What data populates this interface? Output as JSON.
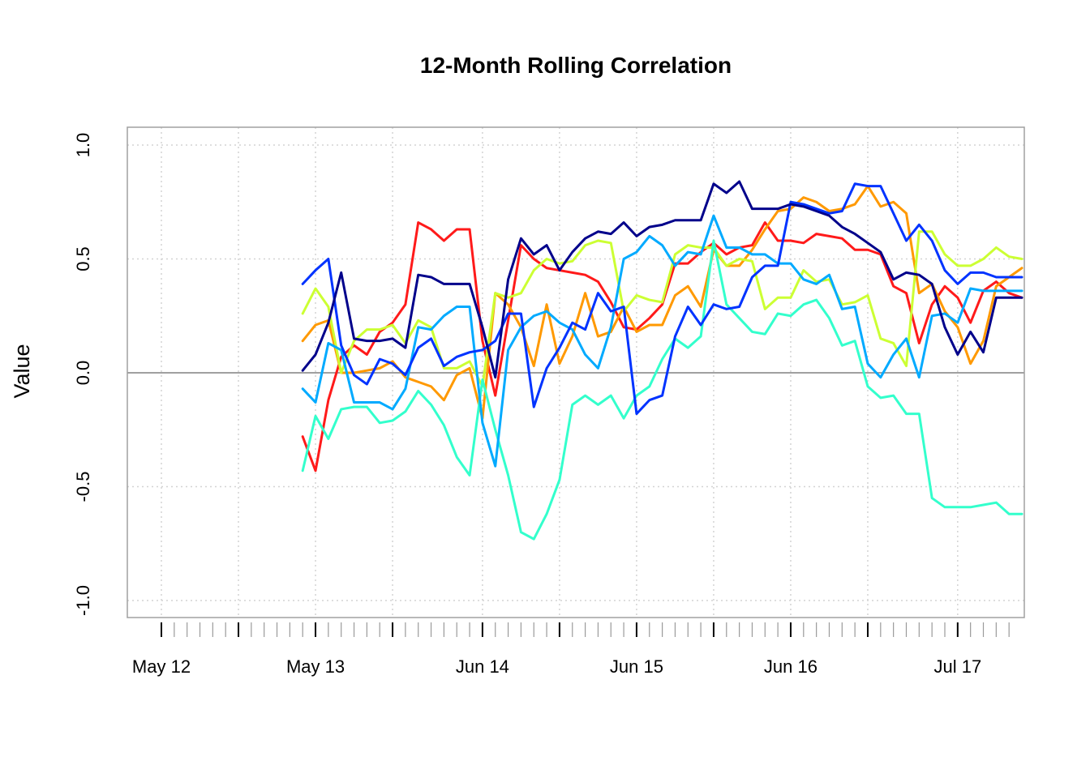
{
  "chart_data": {
    "type": "line",
    "title": "12-Month Rolling Correlation",
    "xlabel": "",
    "ylabel": "Value",
    "ylim": [
      -1.0,
      1.0
    ],
    "yticks": [
      "-1.0",
      "-0.5",
      "0.0",
      "0.5",
      "1.0"
    ],
    "ytick_values": [
      -1.0,
      -0.5,
      0.0,
      0.5,
      1.0
    ],
    "x_start": "2012-05",
    "x_end": "2017-11",
    "data_start": "2013-04",
    "xticks_major": [
      "May 12",
      "May 13",
      "Jun 14",
      "Jun 15",
      "Jun 16",
      "Jul 17"
    ],
    "xticks_major_months": [
      "2012-05",
      "2013-05",
      "2014-06",
      "2015-06",
      "2016-06",
      "2017-07"
    ],
    "grid": true,
    "zero_line": true,
    "legend": "none",
    "series": [
      {
        "color": "#FF1A1A",
        "values": [
          -0.28,
          -0.43,
          -0.12,
          0.07,
          0.12,
          0.08,
          0.18,
          0.22,
          0.3,
          0.66,
          0.63,
          0.58,
          0.63,
          0.63,
          0.14,
          -0.1,
          0.23,
          0.56,
          0.5,
          0.46,
          0.45,
          0.44,
          0.43,
          0.4,
          0.31,
          0.2,
          0.19,
          0.24,
          0.3,
          0.48,
          0.48,
          0.53,
          0.57,
          0.52,
          0.55,
          0.56,
          0.66,
          0.58,
          0.58,
          0.57,
          0.61,
          0.6,
          0.59,
          0.54,
          0.54,
          0.52,
          0.38,
          0.35,
          0.13,
          0.3,
          0.38,
          0.33,
          0.22,
          0.36,
          0.4,
          0.35,
          0.33
        ]
      },
      {
        "color": "#FF9900",
        "values": [
          0.14,
          0.21,
          0.23,
          0.0,
          0.0,
          0.01,
          0.02,
          0.05,
          -0.02,
          -0.04,
          -0.06,
          -0.12,
          -0.01,
          0.02,
          -0.2,
          0.35,
          0.3,
          0.2,
          0.03,
          0.3,
          0.04,
          0.16,
          0.35,
          0.16,
          0.18,
          0.29,
          0.18,
          0.21,
          0.21,
          0.34,
          0.38,
          0.29,
          0.54,
          0.47,
          0.47,
          0.54,
          0.63,
          0.71,
          0.72,
          0.77,
          0.75,
          0.71,
          0.72,
          0.74,
          0.82,
          0.73,
          0.75,
          0.7,
          0.35,
          0.39,
          0.27,
          0.2,
          0.04,
          0.14,
          0.38,
          0.42,
          0.46
        ]
      },
      {
        "color": "#CCFF33",
        "values": [
          0.26,
          0.37,
          0.29,
          0.0,
          0.14,
          0.19,
          0.19,
          0.21,
          0.13,
          0.23,
          0.2,
          0.02,
          0.02,
          0.05,
          -0.06,
          0.35,
          0.33,
          0.35,
          0.45,
          0.5,
          0.48,
          0.49,
          0.56,
          0.58,
          0.57,
          0.27,
          0.34,
          0.32,
          0.31,
          0.52,
          0.56,
          0.55,
          0.55,
          0.47,
          0.5,
          0.49,
          0.28,
          0.33,
          0.33,
          0.45,
          0.4,
          0.41,
          0.3,
          0.31,
          0.34,
          0.15,
          0.13,
          0.03,
          0.62,
          0.62,
          0.52,
          0.47,
          0.47,
          0.5,
          0.55,
          0.51,
          0.5
        ]
      },
      {
        "color": "#33FFCC",
        "values": [
          -0.43,
          -0.19,
          -0.29,
          -0.16,
          -0.15,
          -0.15,
          -0.22,
          -0.21,
          -0.17,
          -0.08,
          -0.14,
          -0.23,
          -0.37,
          -0.45,
          -0.03,
          -0.25,
          -0.45,
          -0.7,
          -0.73,
          -0.62,
          -0.47,
          -0.14,
          -0.1,
          -0.14,
          -0.1,
          -0.2,
          -0.1,
          -0.06,
          0.06,
          0.15,
          0.11,
          0.16,
          0.58,
          0.3,
          0.24,
          0.18,
          0.17,
          0.26,
          0.25,
          0.3,
          0.32,
          0.24,
          0.12,
          0.14,
          -0.06,
          -0.11,
          -0.1,
          -0.18,
          -0.18,
          -0.55,
          -0.59,
          -0.59,
          -0.59,
          -0.58,
          -0.57,
          -0.62,
          -0.62
        ]
      },
      {
        "color": "#00AAFF",
        "values": [
          -0.07,
          -0.13,
          0.13,
          0.1,
          -0.13,
          -0.13,
          -0.13,
          -0.16,
          -0.07,
          0.2,
          0.19,
          0.25,
          0.29,
          0.29,
          -0.22,
          -0.41,
          0.1,
          0.2,
          0.25,
          0.27,
          0.22,
          0.19,
          0.08,
          0.02,
          0.2,
          0.5,
          0.53,
          0.6,
          0.56,
          0.47,
          0.53,
          0.52,
          0.69,
          0.55,
          0.55,
          0.52,
          0.52,
          0.48,
          0.48,
          0.41,
          0.39,
          0.43,
          0.28,
          0.29,
          0.04,
          -0.02,
          0.08,
          0.15,
          -0.02,
          0.25,
          0.26,
          0.22,
          0.37,
          0.36,
          0.36,
          0.36,
          0.36
        ]
      },
      {
        "color": "#0033FF",
        "values": [
          0.39,
          0.45,
          0.5,
          0.12,
          -0.01,
          -0.05,
          0.06,
          0.04,
          -0.01,
          0.11,
          0.15,
          0.03,
          0.07,
          0.09,
          0.1,
          0.14,
          0.26,
          0.26,
          -0.15,
          0.02,
          0.11,
          0.22,
          0.19,
          0.35,
          0.27,
          0.29,
          -0.18,
          -0.12,
          -0.1,
          0.16,
          0.29,
          0.21,
          0.3,
          0.28,
          0.29,
          0.42,
          0.47,
          0.47,
          0.75,
          0.74,
          0.72,
          0.7,
          0.71,
          0.83,
          0.82,
          0.82,
          0.7,
          0.58,
          0.65,
          0.58,
          0.45,
          0.39,
          0.44,
          0.44,
          0.42,
          0.42,
          0.42
        ]
      },
      {
        "color": "#00008B",
        "values": [
          0.01,
          0.08,
          0.22,
          0.44,
          0.15,
          0.14,
          0.14,
          0.15,
          0.11,
          0.43,
          0.42,
          0.39,
          0.39,
          0.39,
          0.2,
          -0.02,
          0.41,
          0.59,
          0.52,
          0.56,
          0.45,
          0.53,
          0.59,
          0.62,
          0.61,
          0.66,
          0.6,
          0.64,
          0.65,
          0.67,
          0.67,
          0.67,
          0.83,
          0.79,
          0.84,
          0.72,
          0.72,
          0.72,
          0.74,
          0.73,
          0.71,
          0.69,
          0.64,
          0.61,
          0.57,
          0.53,
          0.41,
          0.44,
          0.43,
          0.39,
          0.2,
          0.08,
          0.18,
          0.09,
          0.33,
          0.33,
          0.33
        ]
      }
    ]
  }
}
